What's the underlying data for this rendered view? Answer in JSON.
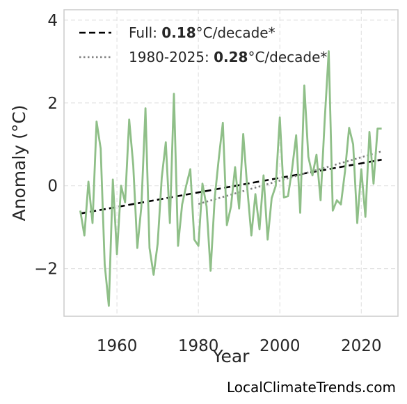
{
  "chart_data": {
    "type": "line",
    "title": "",
    "xlabel": "Year",
    "ylabel": "Anomaly (°C)",
    "xlim": [
      1947,
      2029
    ],
    "ylim": [
      -3.15,
      4.25
    ],
    "xticks": [
      1960,
      1980,
      2000,
      2020
    ],
    "yticks": [
      -2,
      0,
      2,
      4
    ],
    "ytick_labels": [
      "−2",
      "0",
      "2",
      "4"
    ],
    "grid": true,
    "legend_position": "top-left",
    "series_color": "#8fbf88",
    "x": [
      1951,
      1952,
      1953,
      1954,
      1955,
      1956,
      1957,
      1958,
      1959,
      1960,
      1961,
      1962,
      1963,
      1964,
      1965,
      1966,
      1967,
      1968,
      1969,
      1970,
      1971,
      1972,
      1973,
      1974,
      1975,
      1976,
      1977,
      1978,
      1979,
      1980,
      1981,
      1982,
      1983,
      1984,
      1985,
      1986,
      1987,
      1988,
      1989,
      1990,
      1991,
      1992,
      1993,
      1994,
      1995,
      1996,
      1997,
      1998,
      1999,
      2000,
      2001,
      2002,
      2003,
      2004,
      2005,
      2006,
      2007,
      2008,
      2009,
      2010,
      2011,
      2012,
      2013,
      2014,
      2015,
      2016,
      2017,
      2018,
      2019,
      2020,
      2021,
      2022,
      2023,
      2024,
      2025
    ],
    "values": [
      -0.6,
      -1.2,
      0.1,
      -0.9,
      1.55,
      0.9,
      -1.9,
      -2.9,
      0.15,
      -1.65,
      0.0,
      -0.4,
      1.6,
      0.5,
      -1.5,
      -0.5,
      1.87,
      -1.5,
      -2.15,
      -1.4,
      0.2,
      1.05,
      -0.9,
      2.22,
      -1.45,
      -0.45,
      0.0,
      0.4,
      -1.3,
      -1.45,
      0.05,
      -0.5,
      -2.05,
      -0.3,
      0.65,
      1.52,
      -0.95,
      -0.5,
      0.45,
      -0.55,
      1.25,
      -0.05,
      -1.2,
      -0.2,
      -1.05,
      0.25,
      -1.3,
      -0.3,
      0.0,
      1.65,
      -0.28,
      -0.25,
      0.4,
      1.22,
      -0.65,
      2.42,
      0.7,
      0.25,
      0.75,
      -0.35,
      1.55,
      3.25,
      -0.6,
      -0.35,
      -0.45,
      0.35,
      1.4,
      1.0,
      -0.9,
      0.4,
      -0.75,
      1.3,
      0.05,
      1.38,
      1.38
    ],
    "trends": [
      {
        "label_prefix": "Full: ",
        "label_rate": "0.18",
        "label_suffix": "°C/decade*",
        "style": "dashed",
        "color": "#000000",
        "x": [
          1951,
          2025
        ],
        "y": [
          -0.67,
          0.63
        ]
      },
      {
        "label_prefix": "1980-2025: ",
        "label_rate": "0.28",
        "label_suffix": "°C/decade*",
        "style": "dotted",
        "color": "#808080",
        "x": [
          1980,
          2025
        ],
        "y": [
          -0.44,
          0.83
        ]
      }
    ]
  },
  "footer": {
    "credit": "LocalClimateTrends.com"
  }
}
